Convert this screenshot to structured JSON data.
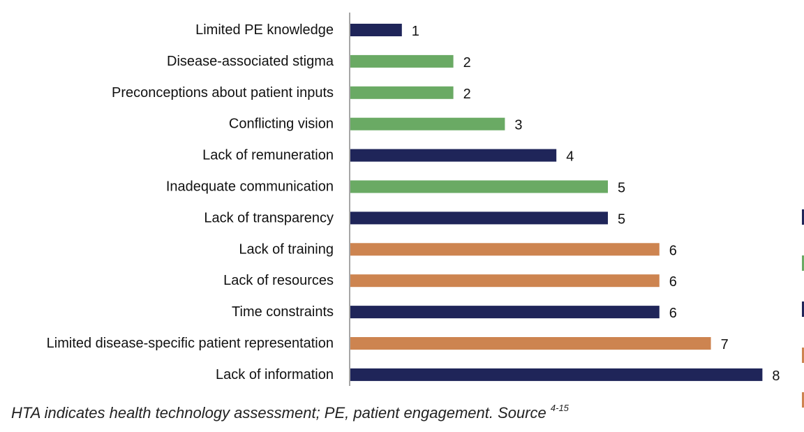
{
  "chart_data": {
    "type": "bar",
    "orientation": "horizontal",
    "title": "",
    "xlabel": "",
    "ylabel": "",
    "xlim": [
      0,
      8
    ],
    "grid": false,
    "categories": [
      "Limited PE knowledge",
      "Disease-associated stigma",
      "Preconceptions about patient inputs",
      "Conflicting vision",
      "Lack of remuneration",
      "Inadequate communication",
      "Lack of transparency",
      "Lack of training",
      "Lack of resources",
      "Time constraints",
      "Limited disease-specific patient representation",
      "Lack of information"
    ],
    "values": [
      1,
      2,
      2,
      3,
      4,
      5,
      5,
      6,
      6,
      6,
      7,
      8
    ],
    "value_labels": [
      "1",
      "2",
      "2",
      "3",
      "4",
      "5",
      "5",
      "6",
      "6",
      "6",
      "7",
      "8"
    ],
    "bar_colors": [
      "#1f2559",
      "#6aaa64",
      "#6aaa64",
      "#6aaa64",
      "#1f2559",
      "#6aaa64",
      "#1f2559",
      "#cd8450",
      "#cd8450",
      "#1f2559",
      "#cd8450",
      "#1f2559"
    ],
    "legend_placement": "right (cropped)",
    "legend_colors": [
      "#1f2559",
      "#6aaa64",
      "#1f2559",
      "#cd8450",
      "#cd8450"
    ]
  },
  "footnote": {
    "text": "HTA indicates health technology assessment; PE, patient engagement.  Source ",
    "superscript": "4-15"
  }
}
